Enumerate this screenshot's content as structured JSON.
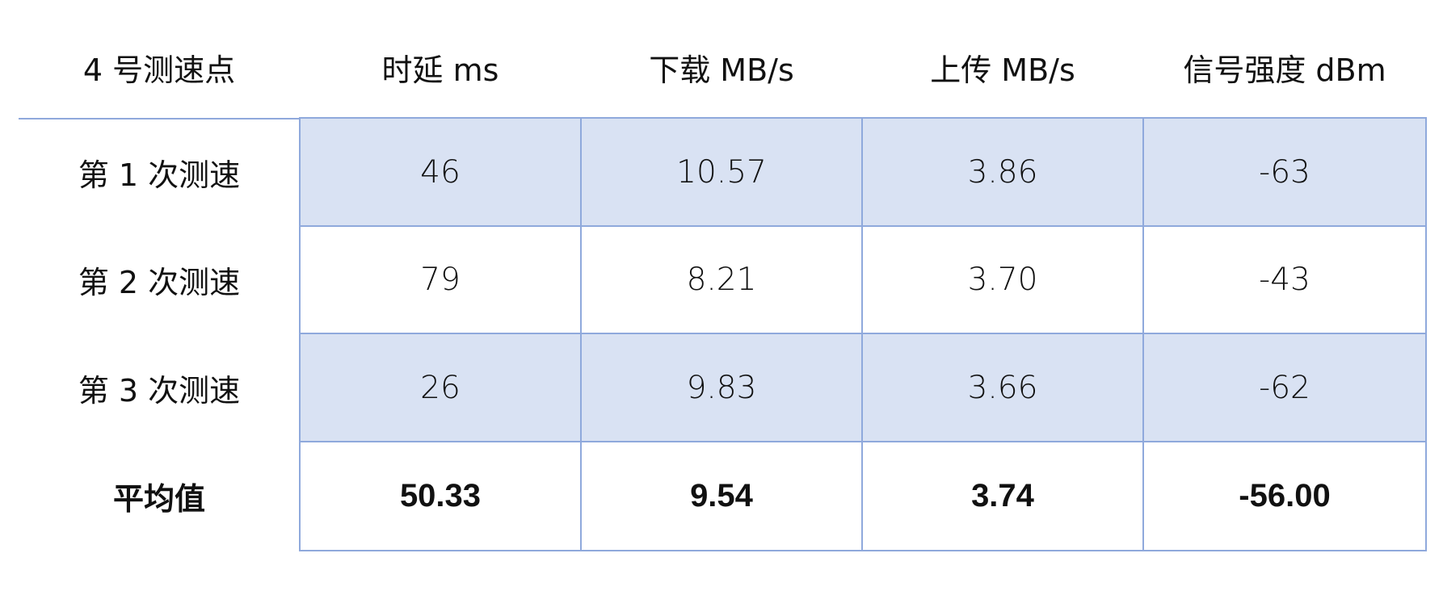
{
  "table": {
    "headers": [
      "4 号测速点",
      "时延 ms",
      "下载 MB/s",
      "上传 MB/s",
      "信号强度  dBm"
    ],
    "rows": [
      {
        "label": "第 1 次测速",
        "values": [
          "46",
          "10.57",
          "3.86",
          "-63"
        ]
      },
      {
        "label": "第 2 次测速",
        "values": [
          "79",
          "8.21",
          "3.70",
          "-43"
        ]
      },
      {
        "label": "第 3 次测速",
        "values": [
          "26",
          "9.83",
          "3.66",
          "-62"
        ]
      }
    ],
    "average": {
      "label": "平均值",
      "values": [
        "50.33",
        "9.54",
        "3.74",
        "-56.00"
      ]
    }
  },
  "colors": {
    "border": "#8fa9dc",
    "shaded_row": "#d9e2f3"
  }
}
